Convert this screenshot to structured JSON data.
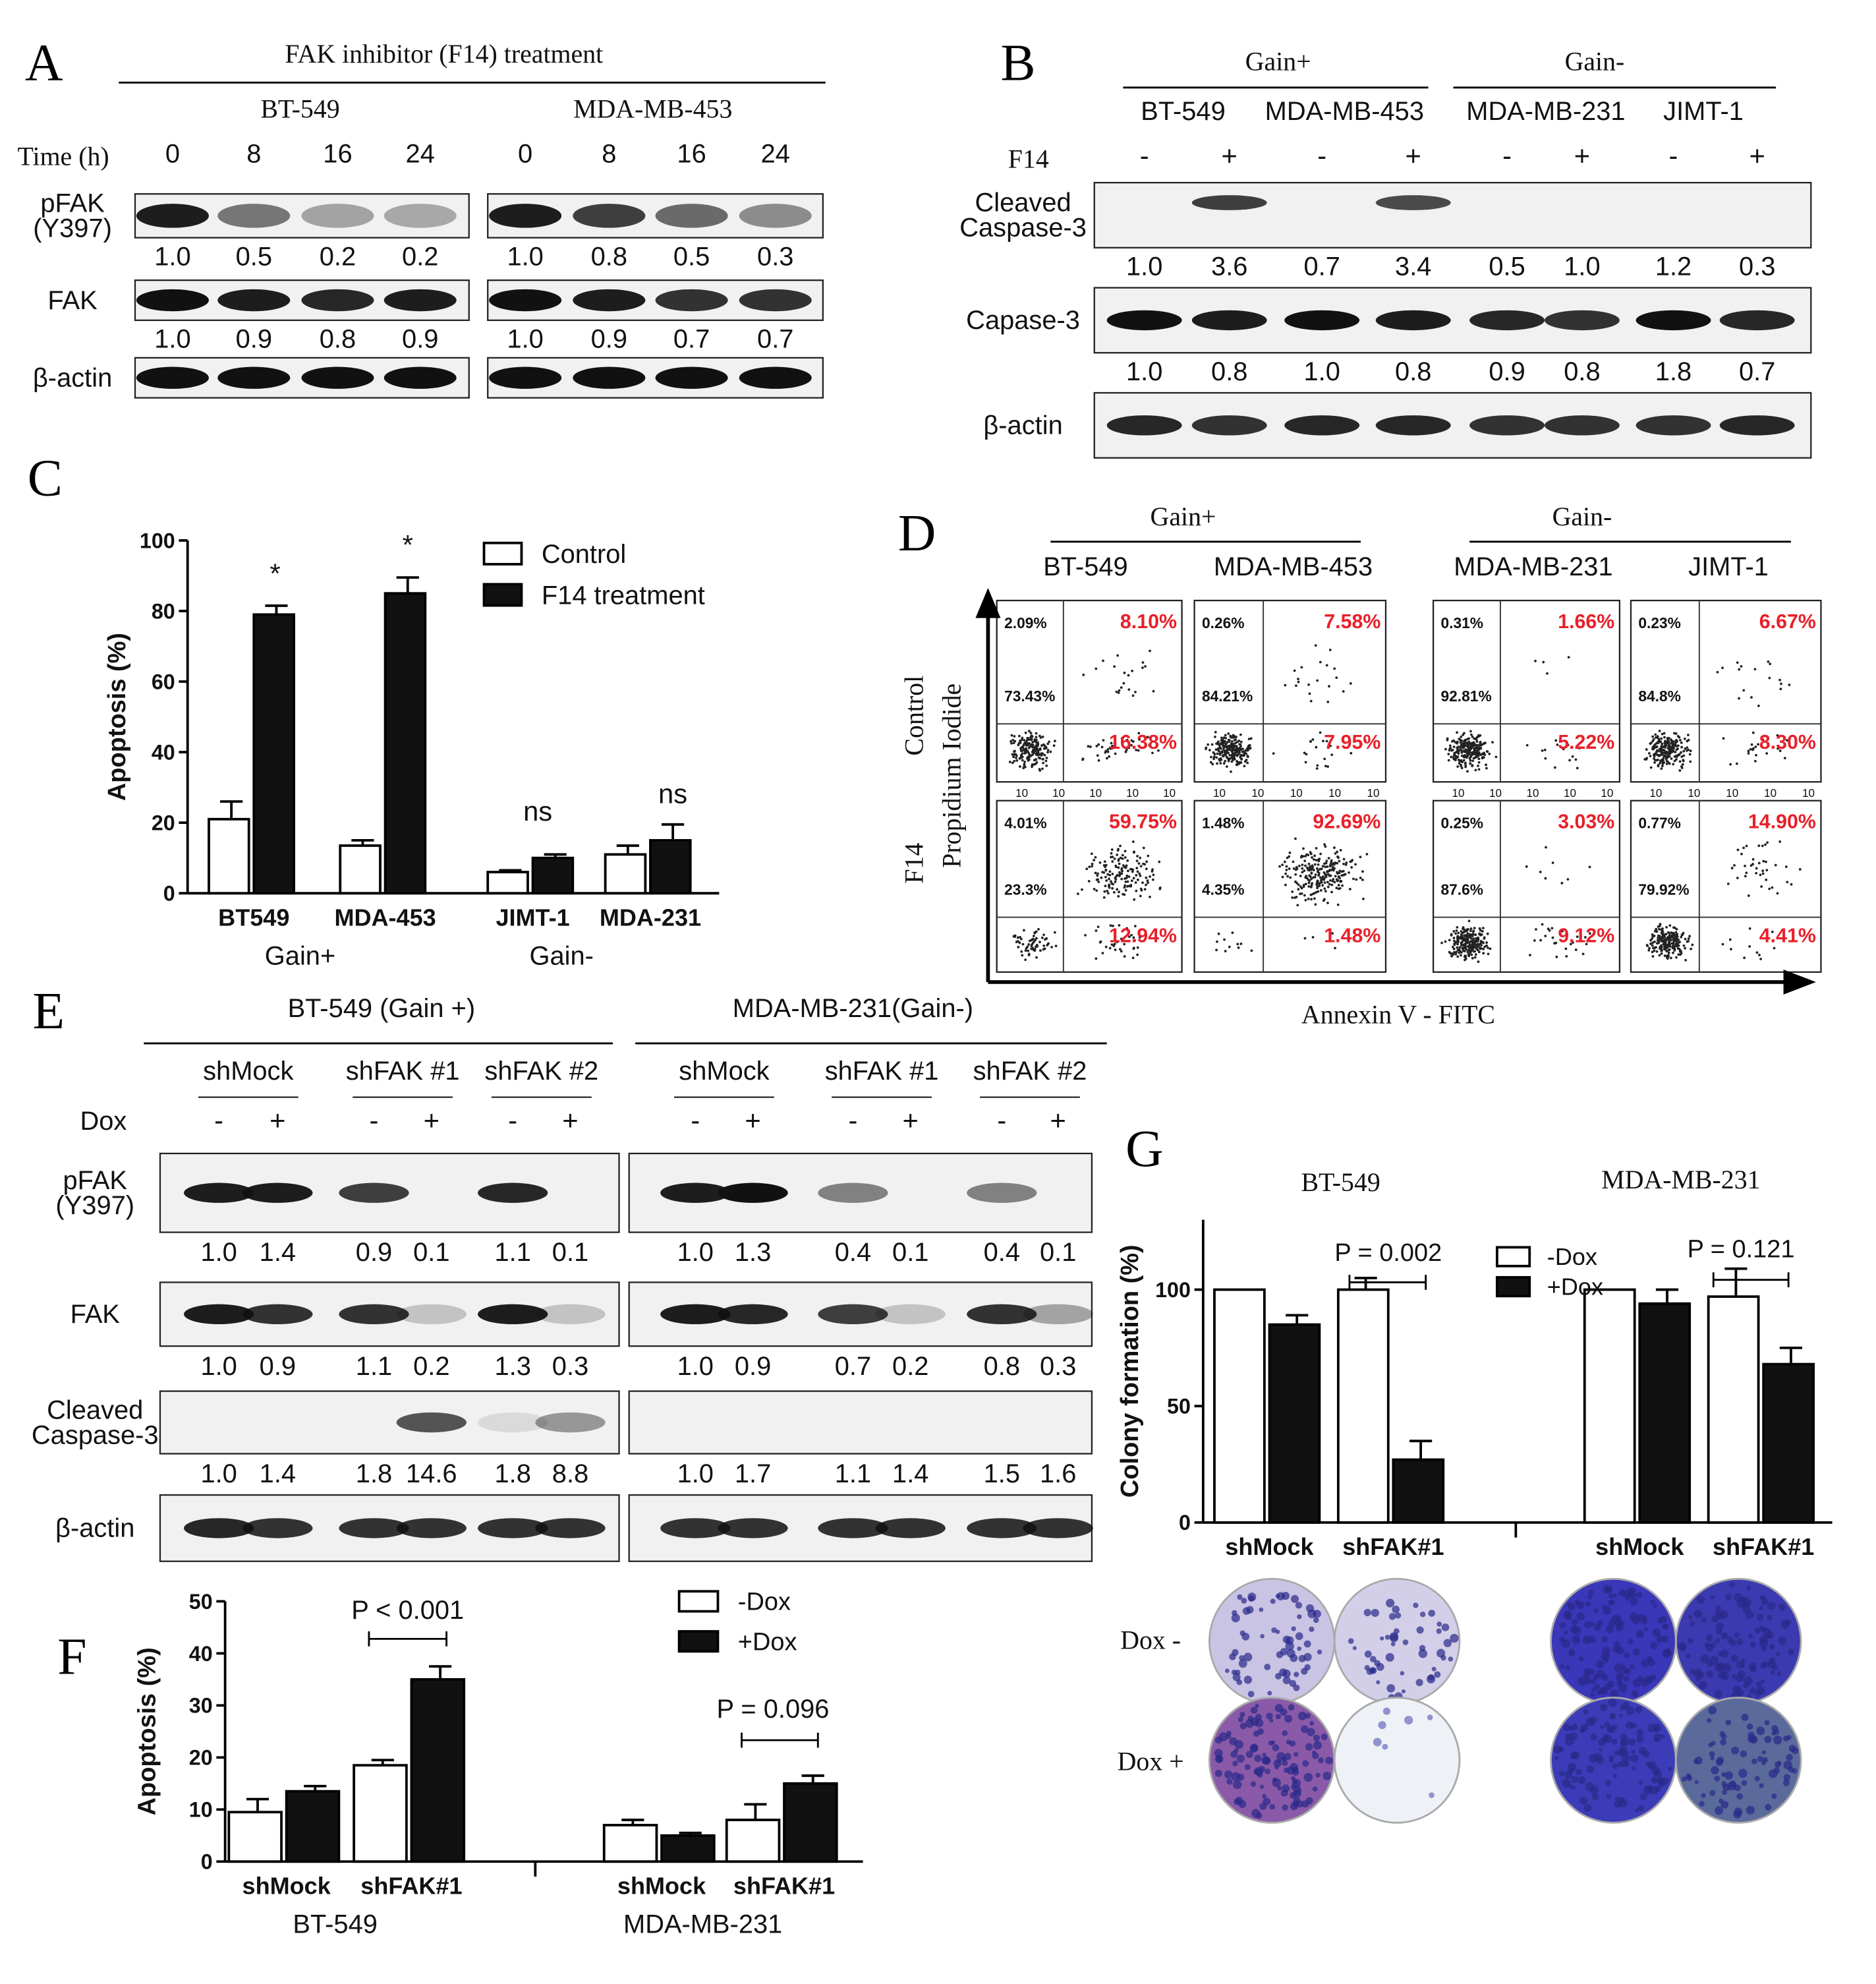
{
  "panels": {
    "A": {
      "label": "A",
      "title": "FAK inhibitor (F14) treatment",
      "cells": [
        "BT-549",
        "MDA-MB-453"
      ],
      "time_label": "Time (h)",
      "times": [
        "0",
        "8",
        "16",
        "24"
      ],
      "rows": [
        {
          "label_lines": [
            "pFAK",
            "(Y397)"
          ],
          "values": [
            [
              "1.0",
              "0.5",
              "0.2",
              "0.2"
            ],
            [
              "1.0",
              "0.8",
              "0.5",
              "0.3"
            ]
          ]
        },
        {
          "label_lines": [
            "FAK"
          ],
          "values": [
            [
              "1.0",
              "0.9",
              "0.8",
              "0.9"
            ],
            [
              "1.0",
              "0.9",
              "0.7",
              "0.7"
            ]
          ]
        },
        {
          "label_lines": [
            "β-actin"
          ],
          "values": []
        }
      ]
    },
    "B": {
      "label": "B",
      "groups": [
        "Gain+",
        "Gain-"
      ],
      "cells": [
        "BT-549",
        "MDA-MB-453",
        "MDA-MB-231",
        "JIMT-1"
      ],
      "treat_label": "F14",
      "signs": [
        "-",
        "+",
        "-",
        "+",
        "-",
        "+",
        "-",
        "+"
      ],
      "rows": [
        {
          "label_lines": [
            "Cleaved",
            "Caspase-3"
          ],
          "values": [
            "1.0",
            "3.6",
            "0.7",
            "3.4",
            "0.5",
            "1.0",
            "1.2",
            "0.3"
          ]
        },
        {
          "label_lines": [
            "Capase-3"
          ],
          "values": [
            "1.0",
            "0.8",
            "1.0",
            "0.8",
            "0.9",
            "0.8",
            "1.8",
            "0.7"
          ]
        },
        {
          "label_lines": [
            "β-actin"
          ],
          "values": []
        }
      ]
    },
    "C": {
      "label": "C",
      "chart_data": {
        "type": "bar",
        "ylabel": "Apoptosis (%)",
        "ylim": [
          0,
          100
        ],
        "yticks": [
          "0",
          "20",
          "40",
          "60",
          "80",
          "100"
        ],
        "categories": [
          "BT549",
          "MDA-453",
          "JIMT-1",
          "MDA-231"
        ],
        "group_labels": [
          "Gain+",
          "Gain-"
        ],
        "legend": "top-right",
        "series": [
          {
            "name": "Control",
            "values": [
              21,
              13.5,
              6,
              11
            ],
            "errors": [
              5,
              1.5,
              0.5,
              2.5
            ],
            "color": "#ffffff"
          },
          {
            "name": "F14 treatment",
            "values": [
              79,
              85,
              10,
              15
            ],
            "errors": [
              2.5,
              4.5,
              1,
              4.5
            ],
            "color": "#111111"
          }
        ],
        "annotations": [
          "*",
          "*",
          "ns",
          "ns"
        ]
      }
    },
    "D": {
      "label": "D",
      "groups": [
        "Gain+",
        "Gain-"
      ],
      "cells": [
        "BT-549",
        "MDA-MB-453",
        "MDA-MB-231",
        "JIMT-1"
      ],
      "row_labels": [
        "Control",
        "F14"
      ],
      "y_axis": "Propidium Iodide",
      "x_axis": "Annexin V - FITC",
      "tick": "10",
      "plots": [
        [
          {
            "ul": "2.09%",
            "ur": "8.10%",
            "ll": "73.43%",
            "lr": "16.38%"
          },
          {
            "ul": "0.26%",
            "ur": "7.58%",
            "ll": "84.21%",
            "lr": "7.95%"
          },
          {
            "ul": "0.31%",
            "ur": "1.66%",
            "ll": "92.81%",
            "lr": "5.22%"
          },
          {
            "ul": "0.23%",
            "ur": "6.67%",
            "ll": "84.8%",
            "lr": "8.30%"
          }
        ],
        [
          {
            "ul": "4.01%",
            "ur": "59.75%",
            "ll": "23.3%",
            "lr": "12.94%"
          },
          {
            "ul": "1.48%",
            "ur": "92.69%",
            "ll": "4.35%",
            "lr": "1.48%"
          },
          {
            "ul": "0.25%",
            "ur": "3.03%",
            "ll": "87.6%",
            "lr": "9.12%"
          },
          {
            "ul": "0.77%",
            "ur": "14.90%",
            "ll": "79.92%",
            "lr": "4.41%"
          }
        ]
      ]
    },
    "E": {
      "label": "E",
      "cells": [
        "BT-549 (Gain +)",
        "MDA-MB-231(Gain-)"
      ],
      "constructs": [
        "shMock",
        "shFAK #1",
        "shFAK #2"
      ],
      "treat_label": "Dox",
      "signs": [
        "-",
        "+",
        "-",
        "+",
        "-",
        "+"
      ],
      "rows": [
        {
          "label_lines": [
            "pFAK",
            "(Y397)"
          ],
          "values": [
            [
              "1.0",
              "1.4",
              "0.9",
              "0.1",
              "1.1",
              "0.1"
            ],
            [
              "1.0",
              "1.3",
              "0.4",
              "0.1",
              "0.4",
              "0.1"
            ]
          ]
        },
        {
          "label_lines": [
            "FAK"
          ],
          "values": [
            [
              "1.0",
              "0.9",
              "1.1",
              "0.2",
              "1.3",
              "0.3"
            ],
            [
              "1.0",
              "0.9",
              "0.7",
              "0.2",
              "0.8",
              "0.3"
            ]
          ]
        },
        {
          "label_lines": [
            "Cleaved",
            "Caspase-3"
          ],
          "values": [
            [
              "1.0",
              "1.4",
              "1.8",
              "14.6",
              "1.8",
              "8.8"
            ],
            [
              "1.0",
              "1.7",
              "1.1",
              "1.4",
              "1.5",
              "1.6"
            ]
          ]
        },
        {
          "label_lines": [
            "β-actin"
          ],
          "values": []
        }
      ]
    },
    "F": {
      "label": "F",
      "chart_data": {
        "type": "bar",
        "ylabel": "Apoptosis (%)",
        "ylim": [
          0,
          50
        ],
        "yticks": [
          "0",
          "10",
          "20",
          "30",
          "40",
          "50"
        ],
        "categories": [
          "shMock",
          "shFAK#1",
          "shMock",
          "shFAK#1"
        ],
        "group_labels": [
          "BT-549",
          "MDA-MB-231"
        ],
        "legend": "top-right",
        "series": [
          {
            "name": "-Dox",
            "values": [
              9.5,
              18.5,
              7,
              8
            ],
            "errors": [
              2.5,
              1,
              1,
              3
            ],
            "color": "#ffffff"
          },
          {
            "name": "+Dox",
            "values": [
              13.5,
              35,
              5,
              15
            ],
            "errors": [
              1,
              2.5,
              0.5,
              1.5
            ],
            "color": "#111111"
          }
        ],
        "annotations": [
          "P < 0.001",
          "P = 0.096"
        ]
      }
    },
    "G": {
      "label": "G",
      "cells": [
        "BT-549",
        "MDA-MB-231"
      ],
      "dox_labels": [
        "Dox -",
        "Dox +"
      ],
      "chart_data": {
        "type": "bar",
        "ylabel": "Colony formation (%)",
        "ylim": [
          0,
          130
        ],
        "yticks": [
          "0",
          "50",
          "100"
        ],
        "categories": [
          "shMock",
          "shFAK#1",
          "shMock",
          "shFAK#1"
        ],
        "group_labels": [
          "BT-549",
          "MDA-MB-231"
        ],
        "legend": "top-right",
        "series": [
          {
            "name": "-Dox",
            "values": [
              100,
              100,
              100,
              97
            ],
            "errors": [
              0,
              5,
              0,
              12
            ],
            "color": "#ffffff"
          },
          {
            "name": "+Dox",
            "values": [
              85,
              27,
              94,
              68
            ],
            "errors": [
              4,
              8,
              6,
              7
            ],
            "color": "#111111"
          }
        ],
        "annotations": [
          "P = 0.002",
          "P = 0.121"
        ]
      }
    }
  }
}
